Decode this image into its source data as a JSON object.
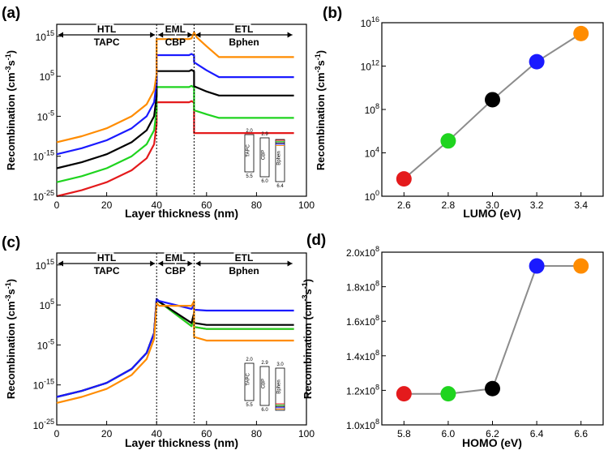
{
  "colors": [
    "#e41a1c",
    "#1fd41f",
    "#000000",
    "#1a1aff",
    "#ff8c00"
  ],
  "chart_data": [
    {
      "panel": "(a)",
      "type": "line",
      "xlabel": "Layer thickness (nm)",
      "ylabel_main": "Recombination (cm",
      "ylabel_sup1": "-3",
      "ylabel_mid": "s",
      "ylabel_sup2": "-1",
      "ylabel_end": ")",
      "xlim": [
        0,
        100
      ],
      "ylim_log10": [
        -25,
        18
      ],
      "xticks": [
        0,
        20,
        40,
        60,
        80,
        100
      ],
      "xtick_labels": [
        "0",
        "20",
        "40",
        "60",
        "80",
        "100"
      ],
      "yticks_log10": [
        -25,
        -15,
        -5,
        5,
        15
      ],
      "ytick_mantissa": "10",
      "ytick_exps": [
        "-25",
        "-15",
        "-5",
        "5",
        "15"
      ],
      "dividers_nm": [
        40,
        55
      ],
      "regions": [
        {
          "name": "HTL",
          "material": "TAPC",
          "from": 0,
          "to": 40
        },
        {
          "name": "EML",
          "material": "CBP",
          "from": 40,
          "to": 55
        },
        {
          "name": "ETL",
          "material": "Bphen",
          "from": 55,
          "to": 95
        }
      ],
      "inset": {
        "layers": [
          "TAPC",
          "CBP",
          "Bphen"
        ],
        "top_levels": [
          "2.0",
          "2.9",
          ""
        ],
        "bottom_levels": [
          "5.5",
          "6.0",
          "6.4"
        ]
      },
      "series": [
        {
          "name": "LUMO 2.6",
          "color_index": 0,
          "x": [
            0,
            10,
            20,
            30,
            36,
            39,
            40,
            40,
            53,
            54,
            55,
            55,
            58,
            95
          ],
          "log10y": [
            -25,
            -23.5,
            -21.5,
            -18.5,
            -15.5,
            -12,
            -7,
            -1.5,
            -1.5,
            -1.2,
            -1.6,
            -9.2,
            -9.2,
            -9.2
          ]
        },
        {
          "name": "LUMO 2.8",
          "color_index": 1,
          "x": [
            0,
            10,
            20,
            30,
            36,
            39,
            40,
            40,
            53,
            54,
            55,
            55,
            60,
            65,
            95
          ],
          "log10y": [
            -21.5,
            -20,
            -18,
            -15,
            -12,
            -8.5,
            -3.5,
            2.3,
            2.3,
            2.6,
            2.2,
            -3.5,
            -4.5,
            -5.4,
            -5.4
          ]
        },
        {
          "name": "LUMO 3.0",
          "color_index": 2,
          "x": [
            0,
            10,
            20,
            30,
            36,
            39,
            40,
            40,
            53,
            54,
            55,
            55,
            60,
            65,
            95
          ],
          "log10y": [
            -18,
            -16.5,
            -14.5,
            -11.5,
            -8.5,
            -5,
            0,
            6.3,
            6.3,
            6.6,
            6.2,
            2.5,
            1.2,
            0.2,
            0.2
          ]
        },
        {
          "name": "LUMO 3.2",
          "color_index": 3,
          "x": [
            0,
            10,
            20,
            30,
            36,
            39,
            40,
            40,
            53,
            54,
            55,
            55,
            60,
            65,
            95
          ],
          "log10y": [
            -14.5,
            -13,
            -11,
            -8,
            -5,
            -1.5,
            3.5,
            10.3,
            10.3,
            10.6,
            10.2,
            8.5,
            6.5,
            4.8,
            4.8
          ]
        },
        {
          "name": "LUMO 3.4",
          "color_index": 4,
          "x": [
            0,
            10,
            20,
            30,
            36,
            39,
            40,
            40,
            53,
            54,
            55,
            56,
            60,
            65,
            95
          ],
          "log10y": [
            -11.5,
            -10,
            -8,
            -5,
            -2,
            1.5,
            5.5,
            14.3,
            14.3,
            14.5,
            16,
            14.8,
            12.5,
            9.8,
            9.8
          ]
        }
      ]
    },
    {
      "panel": "(b)",
      "type": "scatter",
      "xlabel": "LUMO (eV)",
      "ylabel_main": "Recombination (cm",
      "ylabel_sup1": "-3",
      "ylabel_mid": "s",
      "ylabel_sup2": "-1",
      "ylabel_end": ")",
      "xlim": [
        2.5,
        3.5
      ],
      "ylim_log10": [
        0,
        16
      ],
      "xticks": [
        2.6,
        2.8,
        3.0,
        3.2,
        3.4
      ],
      "xtick_labels": [
        "2.6",
        "2.8",
        "3.0",
        "3.2",
        "3.4"
      ],
      "yticks_log10": [
        0,
        4,
        8,
        12,
        16
      ],
      "ytick_mantissa": "10",
      "ytick_exps": [
        "0",
        "4",
        "8",
        "12",
        "16"
      ],
      "x": [
        2.6,
        2.8,
        3.0,
        3.2,
        3.4
      ],
      "log10y": [
        1.6,
        5.1,
        8.9,
        12.4,
        15.0
      ]
    },
    {
      "panel": "(c)",
      "type": "line",
      "xlabel": "Layer thickness (nm)",
      "ylabel_main": "Recombination (cm",
      "ylabel_sup1": "-3",
      "ylabel_mid": "s",
      "ylabel_sup2": "-1",
      "ylabel_end": ")",
      "xlim": [
        0,
        100
      ],
      "ylim_log10": [
        -25,
        18
      ],
      "xticks": [
        0,
        20,
        40,
        60,
        80,
        100
      ],
      "xtick_labels": [
        "0",
        "20",
        "40",
        "60",
        "80",
        "100"
      ],
      "yticks_log10": [
        -25,
        -15,
        -5,
        5,
        15
      ],
      "ytick_mantissa": "10",
      "ytick_exps": [
        "-25",
        "-15",
        "-5",
        "5",
        "15"
      ],
      "dividers_nm": [
        40,
        55
      ],
      "regions": [
        {
          "name": "HTL",
          "material": "TAPC",
          "from": 0,
          "to": 40
        },
        {
          "name": "EML",
          "material": "CBP",
          "from": 40,
          "to": 55
        },
        {
          "name": "ETL",
          "material": "Bphen",
          "from": 55,
          "to": 95
        }
      ],
      "inset": {
        "layers": [
          "TAPC",
          "CBP",
          "Bphen"
        ],
        "top_levels": [
          "2.0",
          "2.9",
          "3.0"
        ],
        "bottom_levels": [
          "5.5",
          "6.0",
          ""
        ]
      },
      "series": [
        {
          "name": "HOMO 5.8",
          "color_index": 0,
          "x": [
            0,
            10,
            20,
            30,
            36,
            39,
            40,
            41,
            54,
            55,
            55,
            60,
            95
          ],
          "log10y": [
            -18,
            -16.5,
            -14.5,
            -11,
            -7,
            -2,
            6.5,
            5.8,
            -0.3,
            2.5,
            -0.5,
            -1,
            -1
          ]
        },
        {
          "name": "HOMO 6.0",
          "color_index": 1,
          "x": [
            0,
            10,
            20,
            30,
            36,
            39,
            40,
            41,
            54,
            55,
            55,
            60,
            95
          ],
          "log10y": [
            -18,
            -16.5,
            -14.5,
            -11,
            -7,
            -2,
            6.5,
            5.8,
            -0.3,
            2.5,
            -0.5,
            -1,
            -1
          ]
        },
        {
          "name": "HOMO 6.2",
          "color_index": 2,
          "x": [
            0,
            10,
            20,
            30,
            36,
            39,
            40,
            41,
            54,
            55,
            55,
            60,
            95
          ],
          "log10y": [
            -18,
            -16.5,
            -14.5,
            -11,
            -7,
            -2,
            6.5,
            5.8,
            0.5,
            3,
            0.5,
            0,
            0
          ]
        },
        {
          "name": "HOMO 6.4",
          "color_index": 3,
          "x": [
            0,
            10,
            20,
            30,
            36,
            39,
            40,
            41,
            54,
            55,
            55,
            60,
            95
          ],
          "log10y": [
            -18,
            -16.5,
            -14.5,
            -11,
            -7,
            -2,
            6.5,
            6,
            4,
            5,
            3.8,
            3.6,
            3.6
          ]
        },
        {
          "name": "HOMO 6.6",
          "color_index": 4,
          "x": [
            0,
            10,
            20,
            30,
            36,
            39,
            40,
            41,
            54,
            55,
            55,
            60,
            95
          ],
          "log10y": [
            -19.5,
            -18,
            -16,
            -12.5,
            -8.5,
            -3.5,
            5.5,
            4.8,
            4.8,
            6,
            -3,
            -3.9,
            -3.9
          ]
        }
      ]
    },
    {
      "panel": "(d)",
      "type": "scatter",
      "xlabel": "HOMO (eV)",
      "ylabel_main": "Recombination (cm",
      "ylabel_sup1": "-3",
      "ylabel_mid": "s",
      "ylabel_sup2": "-1",
      "ylabel_end": ")",
      "xlim": [
        5.7,
        6.7
      ],
      "ylim": [
        100000000,
        200000000
      ],
      "xticks": [
        5.8,
        6.0,
        6.2,
        6.4,
        6.6
      ],
      "xtick_labels": [
        "5.8",
        "6.0",
        "6.2",
        "6.4",
        "6.6"
      ],
      "yticks": [
        100000000,
        120000000,
        140000000,
        160000000,
        180000000,
        200000000
      ],
      "ytick_mantissas": [
        "1.0x10",
        "1.2x10",
        "1.4x10",
        "1.6x10",
        "1.8x10",
        "2.0x10"
      ],
      "ytick_exp": "8",
      "x": [
        5.8,
        6.0,
        6.2,
        6.4,
        6.6
      ],
      "y": [
        118000000,
        118000000,
        121000000,
        192000000,
        192000000
      ]
    }
  ]
}
